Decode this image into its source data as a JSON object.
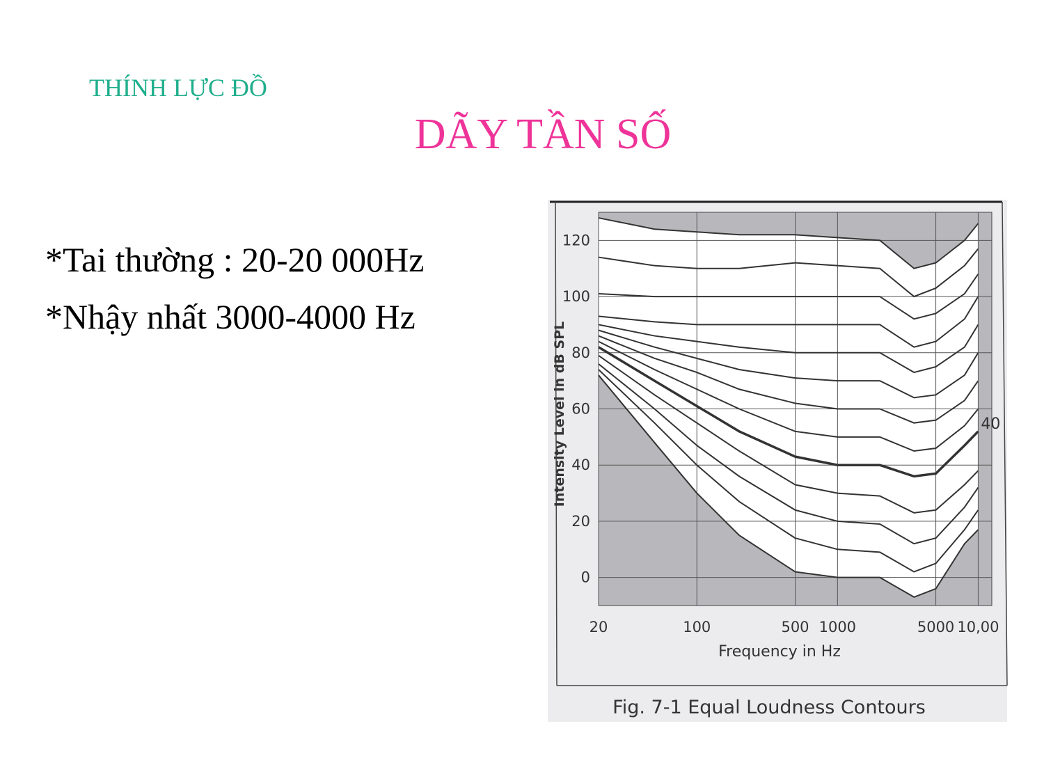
{
  "header": {
    "subtitle": "THÍNH LỰC ĐỒ",
    "title": "DÃY TẦN SỐ"
  },
  "bullets": [
    "*Tai thường : 20-20 000Hz",
    "*Nhậy nhất 3000-4000 Hz"
  ],
  "chart_data": {
    "type": "line",
    "title": "Fig. 7-1 Equal Loudness Contours",
    "x_label": "Frequency in Hz",
    "y_label": "Intensity Level in dB SPL",
    "x_scale": "log",
    "x": [
      20,
      50,
      100,
      200,
      500,
      1000,
      2000,
      3500,
      5000,
      8000,
      10000
    ],
    "xlim": [
      20,
      12500
    ],
    "xticks": [
      20,
      100,
      500,
      1000,
      5000,
      {
        "value": 10000,
        "label": "10,00"
      }
    ],
    "ylim": [
      -10,
      130
    ],
    "yticks": [
      0,
      20,
      40,
      60,
      80,
      100,
      120
    ],
    "grid": true,
    "color": "#333333",
    "series": [
      {
        "values": [
          72,
          48,
          30,
          15,
          2,
          0,
          0,
          -7,
          -4,
          12,
          17
        ]
      },
      {
        "values": [
          74,
          55,
          40,
          27,
          14,
          10,
          9,
          2,
          5,
          17,
          24
        ]
      },
      {
        "values": [
          76,
          60,
          47,
          36,
          24,
          20,
          19,
          12,
          14,
          25,
          32
        ]
      },
      {
        "values": [
          79,
          65,
          55,
          45,
          33,
          30,
          29,
          23,
          24,
          33,
          38
        ]
      },
      {
        "values": [
          82,
          70,
          61,
          52,
          43,
          40,
          40,
          36,
          37,
          47,
          52
        ],
        "label": "40",
        "line_width": 3.5
      },
      {
        "values": [
          84,
          74,
          67,
          60,
          52,
          50,
          50,
          45,
          46,
          54,
          60
        ]
      },
      {
        "values": [
          86,
          78,
          73,
          67,
          62,
          60,
          60,
          55,
          56,
          63,
          70
        ]
      },
      {
        "values": [
          88,
          82,
          78,
          74,
          71,
          70,
          70,
          64,
          65,
          72,
          80
        ]
      },
      {
        "values": [
          90,
          86,
          84,
          82,
          80,
          80,
          80,
          73,
          75,
          82,
          90
        ]
      },
      {
        "values": [
          93,
          91,
          90,
          90,
          90,
          90,
          90,
          82,
          84,
          92,
          100
        ]
      },
      {
        "values": [
          101,
          100,
          100,
          100,
          100,
          100,
          100,
          92,
          94,
          101,
          108
        ]
      },
      {
        "values": [
          114,
          111,
          110,
          110,
          112,
          111,
          110,
          100,
          103,
          111,
          117
        ]
      },
      {
        "values": [
          128,
          124,
          123,
          122,
          122,
          121,
          120,
          110,
          112,
          120,
          126
        ]
      }
    ]
  }
}
